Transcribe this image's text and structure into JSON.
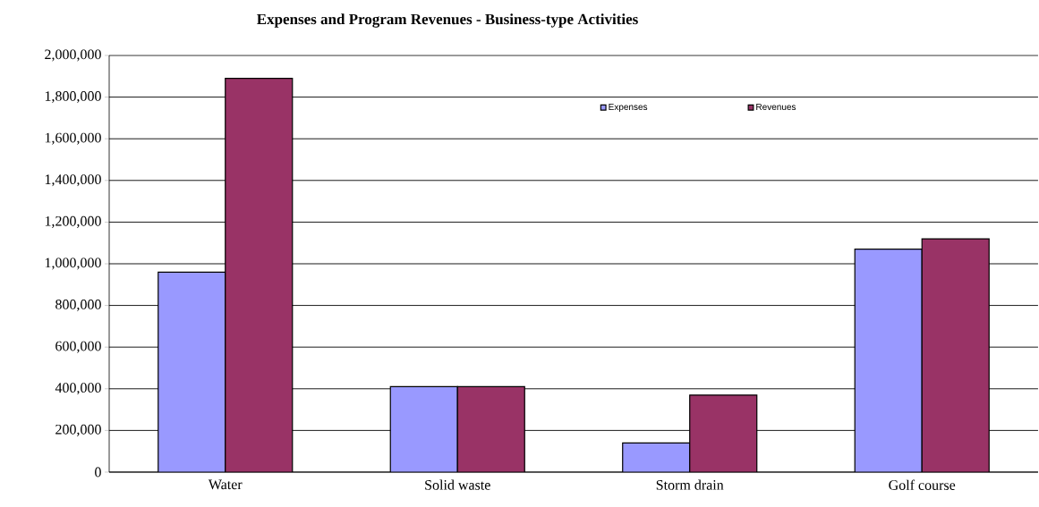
{
  "chart_data": {
    "type": "bar",
    "title": "Expenses and Program Revenues - Business-type Activities",
    "categories": [
      "Water",
      "Solid waste",
      "Storm drain",
      "Golf course"
    ],
    "series": [
      {
        "name": "Expenses",
        "color": "#9999ff",
        "values": [
          960000,
          410000,
          140000,
          1070000
        ]
      },
      {
        "name": "Revenues",
        "color": "#993366",
        "values": [
          1890000,
          410000,
          370000,
          1120000
        ]
      }
    ],
    "ylim": [
      0,
      2000000
    ],
    "yticks": [
      0,
      {
        "value": 200000,
        "label": "200,000"
      },
      {
        "value": 400000,
        "label": "400,000"
      },
      {
        "value": 600000,
        "label": "600,000"
      },
      {
        "value": 800000,
        "label": "800,000"
      },
      {
        "value": 1000000,
        "label": "1,000,000"
      },
      {
        "value": 1200000,
        "label": "1,200,000"
      },
      {
        "value": 1400000,
        "label": "1,400,000"
      },
      {
        "value": 1600000,
        "label": "1,600,000"
      },
      {
        "value": 1800000,
        "label": "1,800,000"
      },
      {
        "value": 2000000,
        "label": "2,000,000"
      }
    ],
    "grid": "y",
    "legend": "top"
  }
}
